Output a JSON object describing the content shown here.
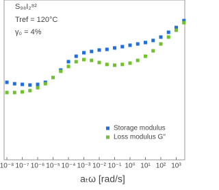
{
  "chart_data": {
    "type": "scatter",
    "log_x": true,
    "annotations": [
      "S₉₈I₂⁸²",
      "Tref = 120°C",
      "γ₀ = 4%"
    ],
    "x_label": "aₜω [rad/s]",
    "xlim": [
      6.6e-09,
      3600
    ],
    "xticks": [
      {
        "value": 1e-08,
        "label": "10⁻⁸"
      },
      {
        "value": 1e-07,
        "label": "10⁻⁷"
      },
      {
        "value": 1e-06,
        "label": "10⁻⁶"
      },
      {
        "value": 1e-05,
        "label": "10⁻⁵"
      },
      {
        "value": 0.0001,
        "label": "10⁻⁴"
      },
      {
        "value": 0.001,
        "label": "10⁻³"
      },
      {
        "value": 0.01,
        "label": "10⁻²"
      },
      {
        "value": 0.1,
        "label": "10⁻¹"
      },
      {
        "value": 1,
        "label": "10⁰"
      },
      {
        "value": 10,
        "label": "10¹"
      },
      {
        "value": 100,
        "label": "10²"
      },
      {
        "value": 1000,
        "label": "10³"
      }
    ],
    "ylim": [
      0,
      10
    ],
    "legend": "lower right",
    "x": [
      1e-08,
      3.16e-08,
      1e-07,
      3.16e-07,
      1e-06,
      3.16e-06,
      1e-05,
      3.16e-05,
      0.0001,
      0.000316,
      0.001,
      0.00316,
      0.01,
      0.0316,
      0.1,
      0.316,
      1,
      3.16,
      10,
      31.6,
      100,
      316,
      1000,
      3160
    ],
    "series": [
      {
        "name": "Storage modulus",
        "color": "#1f6fe0",
        "values": [
          4.85,
          4.76,
          4.72,
          4.68,
          4.72,
          4.85,
          5.15,
          5.62,
          6.14,
          6.48,
          6.7,
          6.78,
          6.87,
          6.91,
          7.0,
          7.08,
          7.17,
          7.25,
          7.34,
          7.47,
          7.68,
          7.98,
          8.28,
          8.71
        ]
      },
      {
        "name": "Loss modulus G''",
        "color": "#6fc22c",
        "values": [
          4.21,
          4.21,
          4.25,
          4.33,
          4.51,
          4.76,
          5.15,
          5.54,
          5.84,
          6.14,
          6.27,
          6.22,
          6.09,
          5.97,
          5.92,
          5.97,
          6.05,
          6.22,
          6.48,
          6.82,
          7.25,
          7.68,
          8.11,
          8.58
        ]
      }
    ]
  }
}
